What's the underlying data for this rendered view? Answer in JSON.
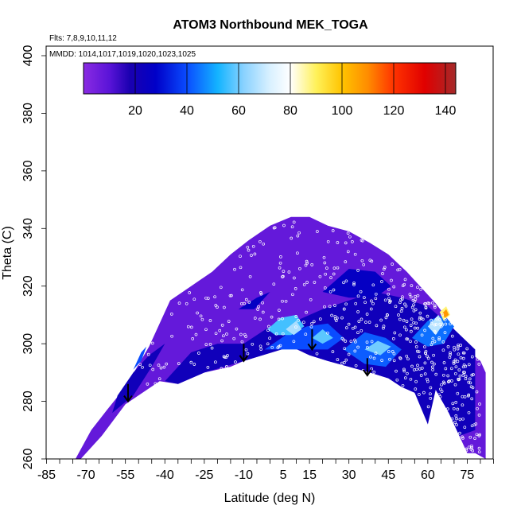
{
  "chart_data": {
    "type": "heatmap",
    "title": "ATOM3 Northbound MEK_TOGA",
    "subtitle_flights": "Flts: 7,8,9,10,11,12",
    "subtitle_dates": "MMDD: 1014,1017,1019,1020,1023,1025",
    "xlabel": "Latitude (deg N)",
    "ylabel": "Theta (C)",
    "xlim": [
      -85,
      85
    ],
    "ylim": [
      260,
      400
    ],
    "x_ticks": [
      -85,
      -70,
      -55,
      -40,
      -25,
      -10,
      5,
      15,
      30,
      45,
      60,
      75
    ],
    "x_tick_labels": [
      "-85",
      "-70",
      "-55",
      "-40",
      "-25",
      "-10",
      "5",
      "15",
      "30",
      "45",
      "60",
      "75"
    ],
    "y_ticks": [
      260,
      280,
      300,
      320,
      340,
      360,
      380,
      400
    ],
    "y_tick_labels": [
      "260",
      "280",
      "300",
      "320",
      "340",
      "360",
      "380",
      "400"
    ],
    "colorbar": {
      "range": [
        0,
        144
      ],
      "ticks": [
        20,
        40,
        60,
        80,
        100,
        120,
        140
      ],
      "tick_labels": [
        "20",
        "40",
        "60",
        "80",
        "100",
        "120",
        "140"
      ],
      "stops": [
        {
          "v": 0,
          "c": "#8a2be2"
        },
        {
          "v": 10,
          "c": "#5a14d8"
        },
        {
          "v": 18,
          "c": "#1a00b0"
        },
        {
          "v": 28,
          "c": "#0000c8"
        },
        {
          "v": 40,
          "c": "#0a4cff"
        },
        {
          "v": 52,
          "c": "#14b4ff"
        },
        {
          "v": 62,
          "c": "#8ad2ff"
        },
        {
          "v": 72,
          "c": "#d8f0ff"
        },
        {
          "v": 80,
          "c": "#ffffff"
        },
        {
          "v": 90,
          "c": "#fff15a"
        },
        {
          "v": 100,
          "c": "#ffc400"
        },
        {
          "v": 110,
          "c": "#ff8c00"
        },
        {
          "v": 120,
          "c": "#ff3300"
        },
        {
          "v": 132,
          "c": "#e00000"
        },
        {
          "v": 144,
          "c": "#a52a2a"
        }
      ]
    },
    "bottom_boundary": [
      [
        -72,
        260
      ],
      [
        -64,
        268
      ],
      [
        -55,
        279
      ],
      [
        -42,
        287
      ],
      [
        -35,
        286
      ],
      [
        -25,
        290
      ],
      [
        -15,
        292
      ],
      [
        -10,
        294
      ],
      [
        8,
        299
      ],
      [
        15,
        296
      ],
      [
        22,
        294
      ],
      [
        38,
        290
      ],
      [
        45,
        288
      ],
      [
        50,
        285
      ],
      [
        55,
        283
      ],
      [
        58,
        278
      ],
      [
        60,
        272
      ],
      [
        61,
        280
      ],
      [
        63,
        284
      ],
      [
        68,
        276
      ],
      [
        72,
        268
      ],
      [
        75,
        262
      ],
      [
        78,
        262
      ],
      [
        82,
        260
      ]
    ],
    "top_boundary": [
      [
        -74,
        260
      ],
      [
        -68,
        270
      ],
      [
        -62,
        277
      ],
      [
        -55,
        285
      ],
      [
        -46,
        299
      ],
      [
        -38,
        315
      ],
      [
        -30,
        320
      ],
      [
        -22,
        325
      ],
      [
        -15,
        331
      ],
      [
        -8,
        336
      ],
      [
        0,
        341
      ],
      [
        8,
        344
      ],
      [
        15,
        344
      ],
      [
        22,
        341
      ],
      [
        30,
        339
      ],
      [
        38,
        335
      ],
      [
        45,
        331
      ],
      [
        52,
        325
      ],
      [
        58,
        319
      ],
      [
        63,
        314
      ],
      [
        68,
        308
      ],
      [
        72,
        302
      ],
      [
        76,
        297
      ],
      [
        80,
        294
      ],
      [
        82,
        290
      ],
      [
        82,
        260
      ]
    ],
    "regions": [
      {
        "value": 8,
        "poly": [
          [
            -74,
            260
          ],
          [
            -68,
            270
          ],
          [
            -62,
            277
          ],
          [
            -55,
            285
          ],
          [
            -46,
            299
          ],
          [
            -38,
            315
          ],
          [
            -30,
            320
          ],
          [
            -22,
            325
          ],
          [
            -15,
            331
          ],
          [
            -8,
            336
          ],
          [
            0,
            341
          ],
          [
            8,
            344
          ],
          [
            15,
            344
          ],
          [
            22,
            341
          ],
          [
            30,
            339
          ],
          [
            38,
            335
          ],
          [
            45,
            331
          ],
          [
            52,
            325
          ],
          [
            58,
            319
          ],
          [
            63,
            314
          ],
          [
            68,
            308
          ],
          [
            72,
            302
          ],
          [
            76,
            297
          ],
          [
            80,
            294
          ],
          [
            82,
            290
          ],
          [
            82,
            260
          ],
          [
            78,
            262
          ],
          [
            75,
            262
          ],
          [
            72,
            268
          ],
          [
            68,
            276
          ],
          [
            63,
            284
          ],
          [
            61,
            280
          ],
          [
            60,
            272
          ],
          [
            58,
            278
          ],
          [
            55,
            283
          ],
          [
            50,
            285
          ],
          [
            45,
            288
          ],
          [
            38,
            290
          ],
          [
            22,
            294
          ],
          [
            15,
            296
          ],
          [
            8,
            299
          ],
          [
            -10,
            294
          ],
          [
            -15,
            292
          ],
          [
            -25,
            290
          ],
          [
            -35,
            286
          ],
          [
            -42,
            287
          ],
          [
            -55,
            279
          ],
          [
            -64,
            268
          ],
          [
            -72,
            260
          ]
        ]
      },
      {
        "value": 22,
        "poly": [
          [
            -60,
            276
          ],
          [
            -52,
            282
          ],
          [
            -45,
            292
          ],
          [
            -40,
            300
          ],
          [
            -46,
            296
          ],
          [
            -52,
            290
          ],
          [
            -58,
            282
          ]
        ]
      },
      {
        "value": 22,
        "poly": [
          [
            -40,
            287
          ],
          [
            -30,
            297
          ],
          [
            -20,
            300
          ],
          [
            -10,
            300
          ],
          [
            0,
            306
          ],
          [
            10,
            308
          ],
          [
            20,
            312
          ],
          [
            30,
            315
          ],
          [
            40,
            318
          ],
          [
            50,
            316
          ],
          [
            60,
            313
          ],
          [
            70,
            305
          ],
          [
            78,
            298
          ],
          [
            78,
            270
          ],
          [
            72,
            268
          ],
          [
            68,
            276
          ],
          [
            63,
            284
          ],
          [
            60,
            272
          ],
          [
            55,
            283
          ],
          [
            50,
            285
          ],
          [
            45,
            288
          ],
          [
            38,
            290
          ],
          [
            22,
            294
          ],
          [
            15,
            296
          ],
          [
            8,
            299
          ],
          [
            -10,
            294
          ],
          [
            -25,
            290
          ],
          [
            -35,
            286
          ]
        ]
      },
      {
        "value": 26,
        "poly": [
          [
            20,
            318
          ],
          [
            30,
            326
          ],
          [
            40,
            325
          ],
          [
            46,
            320
          ],
          [
            40,
            316
          ],
          [
            30,
            316
          ]
        ]
      },
      {
        "value": 26,
        "poly": [
          [
            -12,
            312
          ],
          [
            -5,
            316
          ],
          [
            0,
            318
          ],
          [
            -6,
            312
          ]
        ]
      },
      {
        "value": 40,
        "poly": [
          [
            -2,
            298
          ],
          [
            6,
            303
          ],
          [
            14,
            306
          ],
          [
            22,
            307
          ],
          [
            28,
            302
          ],
          [
            22,
            298
          ],
          [
            12,
            298
          ]
        ]
      },
      {
        "value": 42,
        "poly": [
          [
            28,
            298
          ],
          [
            36,
            304
          ],
          [
            44,
            302
          ],
          [
            50,
            298
          ],
          [
            44,
            292
          ],
          [
            36,
            293
          ]
        ]
      },
      {
        "value": 40,
        "poly": [
          [
            -52,
            291
          ],
          [
            -49,
            297
          ],
          [
            -47,
            299
          ],
          [
            -49,
            294
          ]
        ]
      },
      {
        "value": 44,
        "poly": [
          [
            54,
            302
          ],
          [
            60,
            308
          ],
          [
            66,
            310
          ],
          [
            70,
            306
          ],
          [
            66,
            300
          ],
          [
            60,
            299
          ]
        ]
      },
      {
        "value": 56,
        "poly": [
          [
            -1,
            305
          ],
          [
            4,
            309
          ],
          [
            10,
            310
          ],
          [
            13,
            306
          ],
          [
            8,
            303
          ],
          [
            2,
            303
          ]
        ]
      },
      {
        "value": 58,
        "poly": [
          [
            16,
            302
          ],
          [
            20,
            305
          ],
          [
            24,
            302
          ],
          [
            20,
            300
          ]
        ]
      },
      {
        "value": 60,
        "poly": [
          [
            36,
            298
          ],
          [
            41,
            301
          ],
          [
            46,
            299
          ],
          [
            42,
            296
          ]
        ]
      },
      {
        "value": 66,
        "poly": [
          [
            6,
            305
          ],
          [
            10,
            308
          ],
          [
            12,
            305
          ],
          [
            9,
            303
          ]
        ]
      },
      {
        "value": 68,
        "poly": [
          [
            60,
            306
          ],
          [
            64,
            310
          ],
          [
            66,
            307
          ],
          [
            63,
            303
          ]
        ]
      },
      {
        "value": 88,
        "poly": [
          [
            64.5,
            311
          ],
          [
            67,
            313
          ],
          [
            68.5,
            310
          ],
          [
            66,
            308
          ]
        ]
      },
      {
        "value": 108,
        "poly": [
          [
            65.5,
            310.5
          ],
          [
            67,
            312
          ],
          [
            68,
            310
          ],
          [
            66.5,
            309
          ]
        ]
      }
    ],
    "arrows": [
      {
        "lat": -54,
        "theta_start": 286,
        "theta_end": 280
      },
      {
        "lat": -10,
        "theta_start": 300,
        "theta_end": 294
      },
      {
        "lat": 16,
        "theta_start": 305,
        "theta_end": 298
      },
      {
        "lat": 37,
        "theta_start": 295,
        "theta_end": 289
      }
    ],
    "sample_points_count": 520
  }
}
